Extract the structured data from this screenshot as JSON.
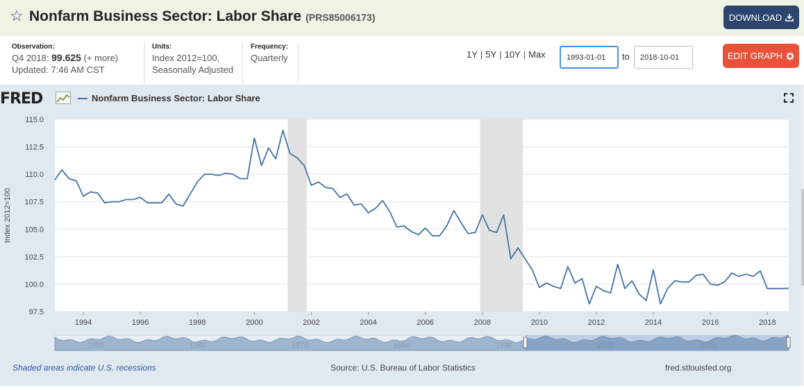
{
  "header": {
    "title": "Nonfarm Business Sector: Labor Share",
    "series_id": "(PRS85006173)",
    "download_label": "DOWNLOAD"
  },
  "meta": {
    "observation_label": "Observation:",
    "observation_period": "Q4 2018:",
    "observation_value": "99.625",
    "observation_more": "(+ more)",
    "updated": "Updated: 7:46 AM CST",
    "units_label": "Units:",
    "units_line1": "Index 2012=100,",
    "units_line2": "Seasonally Adjusted",
    "frequency_label": "Frequency:",
    "frequency_value": "Quarterly"
  },
  "controls": {
    "range_1y": "1Y",
    "range_5y": "5Y",
    "range_10y": "10Y",
    "range_max": "Max",
    "separator": "|",
    "start_date": "1993-01-01",
    "to_label": "to",
    "end_date": "2018-10-01",
    "edit_label": "EDIT GRAPH"
  },
  "chart_header": {
    "logo_text": "FRED",
    "legend_label": "Nonfarm Business Sector: Labor Share"
  },
  "footer": {
    "recession_note": "Shaded areas indicate U.S. recessions",
    "source": "Source: U.S. Bureau of Labor Statistics",
    "site": "fred.stlouisfed.org"
  },
  "colors": {
    "series": "#4572a7",
    "recession": "#e1e1e1",
    "header_bg": "#eef3e3",
    "download_bg": "#2c4670",
    "edit_bg": "#e8523a"
  },
  "chart_data": {
    "type": "line",
    "title": "Nonfarm Business Sector: Labor Share",
    "xlabel": "",
    "ylabel": "Index 2012=100",
    "xlim": [
      1993.0,
      2018.75
    ],
    "ylim": [
      97.5,
      115.0
    ],
    "yticks": [
      97.5,
      100.0,
      102.5,
      105.0,
      107.5,
      110.0,
      112.5,
      115.0
    ],
    "ytick_labels": [
      "97.5",
      "100.0",
      "102.5",
      "105.0",
      "107.5",
      "110.0",
      "112.5",
      "115.0"
    ],
    "xticks": [
      1994,
      1996,
      1998,
      2000,
      2002,
      2004,
      2006,
      2008,
      2010,
      2012,
      2014,
      2016,
      2018
    ],
    "xtick_labels": [
      "1994",
      "1996",
      "1998",
      "2000",
      "2002",
      "2004",
      "2006",
      "2008",
      "2010",
      "2012",
      "2014",
      "2016",
      "2018"
    ],
    "recessions": [
      [
        2001.17,
        2001.84
      ],
      [
        2007.92,
        2009.42
      ]
    ],
    "navigator_labels": [
      "1950",
      "1960",
      "1970",
      "1980",
      "1990",
      "2000",
      "2010"
    ],
    "series": [
      {
        "name": "Nonfarm Business Sector: Labor Share",
        "start_year": 1993.0,
        "step": 0.25,
        "values": [
          109.5,
          110.4,
          109.6,
          109.4,
          108.0,
          108.4,
          108.3,
          107.4,
          107.5,
          107.5,
          107.7,
          107.7,
          107.9,
          107.4,
          107.4,
          107.4,
          108.2,
          107.3,
          107.1,
          108.2,
          109.3,
          110.0,
          110.0,
          109.9,
          110.1,
          110.0,
          109.6,
          109.6,
          113.3,
          110.8,
          112.4,
          111.4,
          114.0,
          111.9,
          111.5,
          110.8,
          109.0,
          109.3,
          108.8,
          108.7,
          107.9,
          108.2,
          107.2,
          107.3,
          106.5,
          106.9,
          107.6,
          106.6,
          105.2,
          105.3,
          104.8,
          104.5,
          105.1,
          104.4,
          104.4,
          105.3,
          106.7,
          105.6,
          104.6,
          104.7,
          106.3,
          104.9,
          104.7,
          106.3,
          102.3,
          103.3,
          102.3,
          101.3,
          99.7,
          100.1,
          99.8,
          99.6,
          101.6,
          100.1,
          100.5,
          98.2,
          99.8,
          99.4,
          99.2,
          101.8,
          99.6,
          100.3,
          99.1,
          98.5,
          101.3,
          98.2,
          99.6,
          100.3,
          100.2,
          100.2,
          100.8,
          100.9,
          100.0,
          99.9,
          100.2,
          101.0,
          100.7,
          100.9,
          100.7,
          101.2,
          99.6,
          99.6,
          99.6,
          99.625
        ]
      }
    ]
  }
}
